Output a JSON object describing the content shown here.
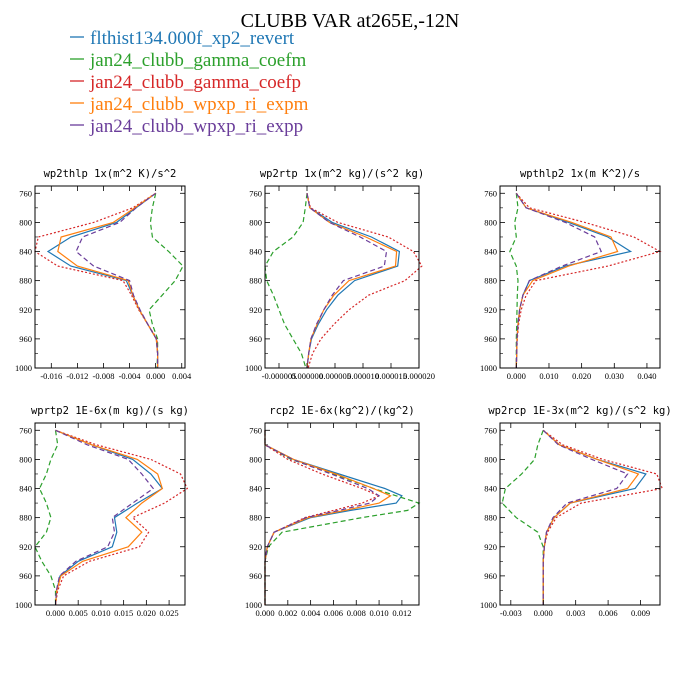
{
  "figure_title": "CLUBB VAR at265E,-12N",
  "legend": [
    {
      "label": "flthist134.000f_xp2_revert",
      "color": "#1f77b4"
    },
    {
      "label": "jan24_clubb_gamma_coefm",
      "color": "#2ca02c"
    },
    {
      "label": "jan24_clubb_gamma_coefp",
      "color": "#d62728"
    },
    {
      "label": "jan24_clubb_wpxp_ri_expm",
      "color": "#ff7f0e"
    },
    {
      "label": "jan24_clubb_wpxp_ri_expp",
      "color": "#6a3d9a"
    }
  ],
  "chart_data": [
    {
      "type": "line",
      "title": "wp2thlp  1x(m^2 K)/s^2",
      "xlim": [
        -0.0185,
        0.0045
      ],
      "ylim": [
        1000,
        750
      ],
      "xticks": [
        -0.016,
        -0.012,
        -0.008,
        -0.004,
        0.0,
        0.004
      ],
      "xticklabels": [
        "-0.016",
        "-0.012",
        "-0.008",
        "-0.004",
        "0.000",
        "0.004"
      ],
      "yticks": [
        760,
        800,
        840,
        880,
        920,
        960,
        1000
      ],
      "p": [
        760,
        780,
        800,
        820,
        840,
        860,
        880,
        900,
        920,
        940,
        960,
        980,
        1000
      ],
      "series": [
        {
          "values": [
            0.0,
            -0.003,
            -0.006,
            -0.013,
            -0.0165,
            -0.013,
            -0.0045,
            -0.0035,
            -0.0025,
            -0.0012,
            0.0001,
            0.0003,
            0.0003
          ]
        },
        {
          "values": [
            0.0,
            -0.0005,
            -0.0008,
            -0.0005,
            0.002,
            0.0042,
            0.003,
            0.001,
            -0.001,
            -0.0005,
            0.0003,
            0.0003,
            0.0002
          ]
        },
        {
          "values": [
            0.0,
            -0.0035,
            -0.0095,
            -0.018,
            -0.0185,
            -0.015,
            -0.005,
            -0.0037,
            -0.0026,
            -0.0012,
            0.0002,
            0.0003,
            0.0003
          ]
        },
        {
          "values": [
            0.0,
            -0.0032,
            -0.0065,
            -0.0145,
            -0.015,
            -0.012,
            -0.0042,
            -0.0035,
            -0.0025,
            -0.0012,
            0.0001,
            0.0003,
            0.0003
          ]
        },
        {
          "values": [
            0.0,
            -0.003,
            -0.0055,
            -0.0112,
            -0.0122,
            -0.0095,
            -0.004,
            -0.0034,
            -0.0024,
            -0.0012,
            0.0001,
            0.0003,
            0.0003
          ]
        }
      ]
    },
    {
      "type": "line",
      "title": "wp2rtp  1x(m^2 kg)/(s^2 kg)",
      "xlim": [
        -7.5e-06,
        2e-05
      ],
      "ylim": [
        1000,
        750
      ],
      "xticks": [
        -5e-06,
        0.0,
        5e-06,
        1e-05,
        1.5e-05,
        2e-05
      ],
      "xticklabels": [
        "-0.000005",
        "0.000000",
        "0.000005",
        "0.000010",
        "0.000015",
        "0.000020"
      ],
      "yticks": [
        760,
        800,
        840,
        880,
        920,
        960,
        1000
      ],
      "p": [
        760,
        780,
        800,
        820,
        840,
        860,
        880,
        900,
        920,
        940,
        960,
        980,
        1000
      ],
      "series": [
        {
          "values": [
            0.0,
            5e-07,
            4.5e-06,
            1.15e-05,
            1.65e-05,
            1.62e-05,
            8.5e-06,
            5.5e-06,
            3.5e-06,
            2e-06,
            8e-07,
            3e-07,
            0.0
          ],
          "_c": 0
        },
        {
          "values": [
            0.0,
            -3e-07,
            -7e-07,
            -2.5e-06,
            -6e-06,
            -7.5e-06,
            -7.2e-06,
            -6e-06,
            -5e-06,
            -4e-06,
            -2.5e-06,
            -1e-06,
            -2e-07
          ]
        },
        {
          "values": [
            0.0,
            6e-07,
            5.5e-06,
            1.45e-05,
            1.9e-05,
            2.05e-05,
            1.75e-05,
            1.1e-05,
            7.5e-06,
            4.8e-06,
            2.5e-06,
            1e-06,
            2e-07
          ]
        },
        {
          "values": [
            0.0,
            5e-07,
            4e-06,
            1.05e-05,
            1.6e-05,
            1.58e-05,
            7.5e-06,
            4.8e-06,
            3e-06,
            1.8e-06,
            7e-07,
            3e-07,
            0.0
          ]
        },
        {
          "values": [
            0.0,
            5e-07,
            4e-06,
            9.5e-06,
            1.42e-05,
            1.38e-05,
            6.5e-06,
            4.5e-06,
            3e-06,
            1.7e-06,
            7e-07,
            3e-07,
            0.0
          ]
        }
      ]
    },
    {
      "type": "line",
      "title": "wpthlp2  1x(m K^2)/s",
      "xlim": [
        -0.005,
        0.044
      ],
      "ylim": [
        1000,
        750
      ],
      "xticks": [
        0.0,
        0.01,
        0.02,
        0.03,
        0.04
      ],
      "xticklabels": [
        "0.000",
        "0.010",
        "0.020",
        "0.030",
        "0.040"
      ],
      "yticks": [
        760,
        800,
        840,
        880,
        920,
        960,
        1000
      ],
      "p": [
        760,
        780,
        800,
        820,
        840,
        860,
        880,
        900,
        920,
        940,
        960,
        980,
        1000
      ],
      "series": [
        {
          "values": [
            0.0,
            0.003,
            0.016,
            0.028,
            0.035,
            0.015,
            0.004,
            0.002,
            0.001,
            0.0005,
            0.0002,
            0.0001,
            0.0
          ]
        },
        {
          "values": [
            0.0,
            0.0005,
            -0.0005,
            0.0,
            -0.002,
            0.0,
            0.0005,
            0.0003,
            0.0002,
            0.0001,
            0.0,
            0.0,
            0.0
          ]
        },
        {
          "values": [
            0.0,
            0.004,
            0.021,
            0.036,
            0.044,
            0.028,
            0.006,
            0.003,
            0.0015,
            0.0007,
            0.0003,
            0.0001,
            0.0
          ]
        },
        {
          "values": [
            0.0,
            0.003,
            0.017,
            0.029,
            0.031,
            0.016,
            0.005,
            0.002,
            0.001,
            0.0005,
            0.0002,
            0.0001,
            0.0
          ]
        },
        {
          "values": [
            0.0,
            0.003,
            0.015,
            0.024,
            0.026,
            0.014,
            0.004,
            0.002,
            0.001,
            0.0005,
            0.0002,
            0.0001,
            0.0
          ]
        }
      ]
    },
    {
      "type": "line",
      "title": "wprtp2  1E-6x(m kg)/(s kg)",
      "xlim": [
        -0.0045,
        0.0285
      ],
      "ylim": [
        1000,
        750
      ],
      "xticks": [
        0.0,
        0.005,
        0.01,
        0.015,
        0.02,
        0.025
      ],
      "xticklabels": [
        "0.000",
        "0.005",
        "0.010",
        "0.015",
        "0.020",
        "0.025"
      ],
      "yticks": [
        760,
        800,
        840,
        880,
        920,
        960,
        1000
      ],
      "p": [
        760,
        780,
        800,
        820,
        840,
        860,
        880,
        900,
        920,
        940,
        960,
        980,
        1000
      ],
      "series": [
        {
          "values": [
            0.0,
            0.008,
            0.017,
            0.021,
            0.0235,
            0.018,
            0.013,
            0.0135,
            0.0125,
            0.005,
            0.001,
            0.0003,
            0.0
          ]
        },
        {
          "values": [
            0.0,
            0.0005,
            -0.001,
            -0.002,
            -0.0035,
            -0.002,
            -0.001,
            -0.002,
            -0.0045,
            -0.003,
            -0.001,
            0.0,
            0.0
          ]
        },
        {
          "values": [
            0.0,
            0.009,
            0.021,
            0.0275,
            0.029,
            0.024,
            0.017,
            0.0205,
            0.0185,
            0.0075,
            0.0018,
            0.0005,
            0.0
          ]
        },
        {
          "values": [
            0.0,
            0.008,
            0.018,
            0.0225,
            0.0235,
            0.019,
            0.0155,
            0.019,
            0.016,
            0.006,
            0.0012,
            0.0003,
            0.0
          ]
        },
        {
          "values": [
            0.0,
            0.007,
            0.016,
            0.019,
            0.0215,
            0.017,
            0.0125,
            0.013,
            0.0115,
            0.0045,
            0.0009,
            0.0002,
            0.0
          ]
        }
      ]
    },
    {
      "type": "line",
      "title": "rcp2  1E-6x(kg^2)/(kg^2)",
      "xlim": [
        0.0,
        0.0135
      ],
      "ylim": [
        1000,
        750
      ],
      "xticks": [
        0.0,
        0.002,
        0.004,
        0.006,
        0.008,
        0.01,
        0.012
      ],
      "xticklabels": [
        "0.000",
        "0.002",
        "0.004",
        "0.006",
        "0.008",
        "0.010",
        "0.012"
      ],
      "yticks": [
        760,
        800,
        840,
        880,
        920,
        960,
        1000
      ],
      "p": [
        760,
        780,
        800,
        820,
        840,
        850,
        860,
        870,
        880,
        900,
        920,
        940,
        960,
        980,
        1000
      ],
      "series": [
        {
          "values": [
            0.0,
            0.0,
            0.0025,
            0.0065,
            0.0105,
            0.012,
            0.0115,
            0.0075,
            0.004,
            0.0008,
            0.0002,
            0.0,
            0.0,
            0.0,
            0.0
          ]
        },
        {
          "values": [
            0.0,
            0.0,
            0.0023,
            0.006,
            0.0095,
            0.0115,
            0.0135,
            0.0125,
            0.0085,
            0.0015,
            0.0003,
            0.0,
            0.0,
            0.0,
            0.0
          ]
        },
        {
          "values": [
            0.0,
            0.0,
            0.002,
            0.005,
            0.0085,
            0.01,
            0.0085,
            0.006,
            0.0035,
            0.0008,
            0.0002,
            0.0,
            0.0,
            0.0,
            0.0
          ]
        },
        {
          "values": [
            0.0,
            0.0,
            0.0025,
            0.0062,
            0.0095,
            0.011,
            0.01,
            0.007,
            0.0038,
            0.0008,
            0.0002,
            0.0,
            0.0,
            0.0,
            0.0
          ]
        },
        {
          "values": [
            0.0,
            0.0,
            0.0024,
            0.0058,
            0.009,
            0.01,
            0.0092,
            0.0065,
            0.0036,
            0.0008,
            0.0002,
            0.0,
            0.0,
            0.0,
            0.0
          ]
        }
      ]
    },
    {
      "type": "line",
      "title": "wp2rcp  1E-3x(m^2 kg)/(s^2 kg)",
      "xlim": [
        -0.004,
        0.0108
      ],
      "ylim": [
        1000,
        750
      ],
      "xticks": [
        -0.003,
        0.0,
        0.003,
        0.006,
        0.009
      ],
      "xticklabels": [
        "-0.003",
        "0.000",
        "0.003",
        "0.006",
        "0.009"
      ],
      "yticks": [
        760,
        800,
        840,
        880,
        920,
        960,
        1000
      ],
      "p": [
        760,
        780,
        800,
        820,
        840,
        860,
        880,
        900,
        920,
        940,
        960,
        980,
        1000
      ],
      "series": [
        {
          "values": [
            0.0,
            0.0015,
            0.005,
            0.0095,
            0.0085,
            0.0025,
            0.001,
            0.0003,
            0.0001,
            0.0,
            0.0,
            0.0,
            0.0
          ]
        },
        {
          "values": [
            0.0,
            -0.0005,
            -0.0008,
            -0.002,
            -0.0035,
            -0.0038,
            -0.0025,
            -0.0005,
            0.0,
            0.0,
            0.0,
            0.0,
            0.0
          ]
        },
        {
          "values": [
            0.0,
            0.0018,
            0.0055,
            0.0105,
            0.011,
            0.0035,
            0.0012,
            0.0004,
            0.0001,
            0.0,
            0.0,
            0.0,
            0.0
          ]
        },
        {
          "values": [
            0.0,
            0.0015,
            0.005,
            0.0088,
            0.0078,
            0.0025,
            0.001,
            0.0003,
            0.0001,
            0.0,
            0.0,
            0.0,
            0.0
          ]
        },
        {
          "values": [
            0.0,
            0.0014,
            0.0045,
            0.0078,
            0.0068,
            0.0022,
            0.0009,
            0.0003,
            0.0001,
            0.0,
            0.0,
            0.0,
            0.0
          ]
        }
      ]
    }
  ]
}
